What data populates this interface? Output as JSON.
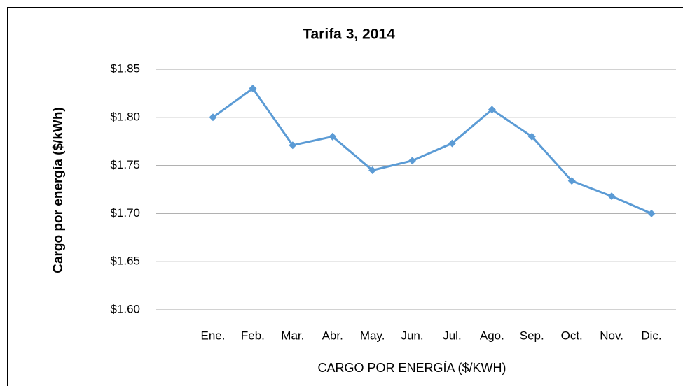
{
  "chart_data": {
    "type": "line",
    "title": "Tarifa 3, 2014",
    "y_label": "Cargo por energía ($/kWh)",
    "x_label": "CARGO POR ENERGÍA ($/KWH)",
    "categories": [
      "Ene.",
      "Feb.",
      "Mar.",
      "Abr.",
      "May.",
      "Jun.",
      "Jul.",
      "Ago.",
      "Sep.",
      "Oct.",
      "Nov.",
      "Dic."
    ],
    "series": [
      {
        "name": "Cargo por energía",
        "color": "#5b9bd5",
        "values": [
          1.8,
          1.83,
          1.771,
          1.78,
          1.745,
          1.755,
          1.773,
          1.808,
          1.78,
          1.734,
          1.718,
          1.7
        ]
      }
    ],
    "ylim": [
      1.6,
      1.85
    ],
    "yticks": [
      {
        "value": 1.6,
        "label": "$1.60"
      },
      {
        "value": 1.65,
        "label": "$1.65"
      },
      {
        "value": 1.7,
        "label": "$1.70"
      },
      {
        "value": 1.75,
        "label": "$1.75"
      },
      {
        "value": 1.8,
        "label": "$1.80"
      },
      {
        "value": 1.85,
        "label": "$1.85"
      }
    ],
    "grid": true
  }
}
